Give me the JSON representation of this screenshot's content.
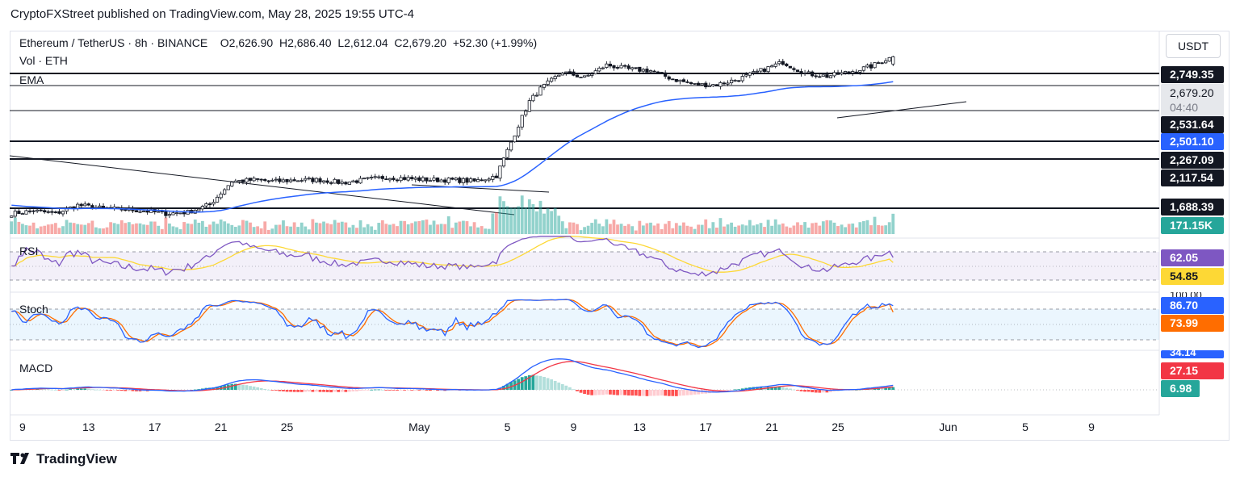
{
  "header": {
    "publisher_line": "CryptoFXStreet published on TradingView.com, May 28, 2025 19:55 UTC-4"
  },
  "legend": {
    "symbol": "Ethereum / TetherUS",
    "interval": "8h",
    "exchange": "BINANCE",
    "open_label": "O",
    "open": "2,626.90",
    "high_label": "H",
    "high": "2,686.40",
    "low_label": "L",
    "low": "2,612.04",
    "close_label": "C",
    "close": "2,679.20",
    "change": "+52.30 (+1.99%)",
    "vol_label": "Vol · ETH",
    "ema_label": "EMA"
  },
  "currency_button": "USDT",
  "colors": {
    "up": "#26a69a",
    "down": "#ef5350",
    "ema": "#2962ff",
    "rsi": "#7e57c2",
    "rsi_ma": "#fdd835",
    "stoch_k": "#2962ff",
    "stoch_d": "#ff6d00",
    "macd": "#2962ff",
    "signal": "#f23645"
  },
  "price_tags": {
    "hline_2749": "2,749.35",
    "last_price": "2,679.20",
    "countdown": "04:40",
    "hline_2531": "2,531.64",
    "ema_value": "2,501.10",
    "hline_2267": "2,267.09",
    "hline_2117": "2,117.54",
    "hline_1688": "1,688.39",
    "volume_value": "171.15K"
  },
  "panes": {
    "rsi": {
      "label": "RSI",
      "value": "62.05",
      "ma_value": "54.85"
    },
    "stoch": {
      "label": "Stoch",
      "k_value": "86.70",
      "d_value": "73.99",
      "top_tick": "100.00"
    },
    "macd": {
      "label": "MACD",
      "macd_value": "34.14",
      "signal_value": "27.15",
      "hist_value": "6.98"
    }
  },
  "x_axis": {
    "labels": [
      "9",
      "13",
      "17",
      "21",
      "25",
      "May",
      "5",
      "9",
      "13",
      "17",
      "21",
      "25",
      "Jun",
      "5",
      "9"
    ]
  },
  "footer": {
    "brand": "TradingView"
  },
  "chart_data": {
    "type": "candlestick",
    "title": "Ethereum / TetherUS · 8h · BINANCE",
    "interval": "8h",
    "x_range": [
      "2025-04-06",
      "2025-06-12"
    ],
    "y_range": [
      1385,
      2865
    ],
    "horizontal_levels": [
      2749.35,
      2531.64,
      2267.09,
      2117.54,
      1688.39
    ],
    "last": {
      "open": 2626.9,
      "high": 2686.4,
      "low": 2612.04,
      "close": 2679.2,
      "change": 52.3,
      "change_pct": 1.99
    },
    "ema_last": 2501.1,
    "volume_last_k": 171.15,
    "anchors_close": [
      [
        0,
        1560
      ],
      [
        6,
        1580
      ],
      [
        12,
        1560
      ],
      [
        18,
        1620
      ],
      [
        24,
        1600
      ],
      [
        30,
        1590
      ],
      [
        36,
        1580
      ],
      [
        42,
        1560
      ],
      [
        48,
        1570
      ],
      [
        54,
        1625
      ],
      [
        60,
        1790
      ],
      [
        66,
        1800
      ],
      [
        72,
        1790
      ],
      [
        78,
        1800
      ],
      [
        84,
        1800
      ],
      [
        90,
        1780
      ],
      [
        96,
        1800
      ],
      [
        102,
        1820
      ],
      [
        108,
        1810
      ],
      [
        114,
        1800
      ],
      [
        120,
        1800
      ],
      [
        126,
        1790
      ],
      [
        132,
        1830
      ],
      [
        135,
        2010
      ],
      [
        138,
        2190
      ],
      [
        141,
        2360
      ],
      [
        144,
        2450
      ],
      [
        150,
        2570
      ],
      [
        156,
        2530
      ],
      [
        162,
        2620
      ],
      [
        168,
        2590
      ],
      [
        174,
        2580
      ],
      [
        180,
        2520
      ],
      [
        186,
        2480
      ],
      [
        192,
        2480
      ],
      [
        198,
        2520
      ],
      [
        204,
        2580
      ],
      [
        210,
        2640
      ],
      [
        216,
        2560
      ],
      [
        222,
        2540
      ],
      [
        228,
        2570
      ],
      [
        234,
        2610
      ],
      [
        238,
        2660
      ],
      [
        240,
        2679
      ]
    ],
    "rsi": {
      "last": 62.05,
      "ma_last": 54.85,
      "levels": [
        70,
        30
      ]
    },
    "stoch": {
      "k_last": 86.7,
      "d_last": 73.99,
      "levels": [
        80,
        20
      ]
    },
    "macd": {
      "macd_last": 34.14,
      "signal_last": 27.15,
      "hist_last": 6.98
    }
  }
}
